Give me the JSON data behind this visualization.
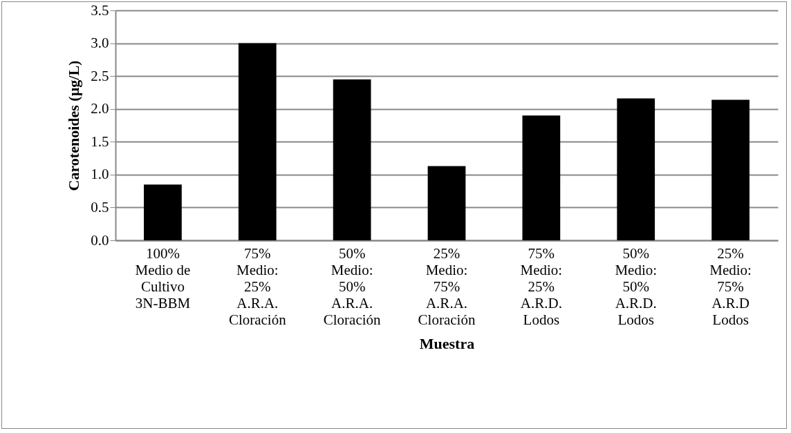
{
  "chart_data": {
    "type": "bar",
    "xlabel": "Muestra",
    "ylabel": "Carotenoides (µg/L)",
    "categories": [
      "100%\nMedio de\nCultivo\n3N-BBM",
      "75%\nMedio:\n25%\nA.R.A.\nCloración",
      "50%\nMedio:\n50%\nA.R.A.\nCloración",
      "25%\nMedio:\n75%\nA.R.A.\nCloración",
      "75%\nMedio:\n25%\nA.R.D.\nLodos",
      "50%\nMedio:\n50%\nA.R.D.\nLodos",
      "25%\nMedio:\n75%\nA.R.D\nLodos"
    ],
    "values": [
      0.85,
      3.0,
      2.45,
      1.13,
      1.9,
      2.16,
      2.14
    ],
    "color": "#000000",
    "ylim": [
      0,
      3.5
    ],
    "yticks": [
      {
        "value": 0,
        "label": "0.0"
      },
      {
        "value": 0.5,
        "label": "0.5"
      },
      {
        "value": 1,
        "label": "1.0"
      },
      {
        "value": 1.5,
        "label": "1.5"
      },
      {
        "value": 2,
        "label": "2.0"
      },
      {
        "value": 2.5,
        "label": "2.5"
      },
      {
        "value": 3,
        "label": "3.0"
      },
      {
        "value": 3.5,
        "label": "3.5"
      }
    ],
    "grid": "y"
  }
}
